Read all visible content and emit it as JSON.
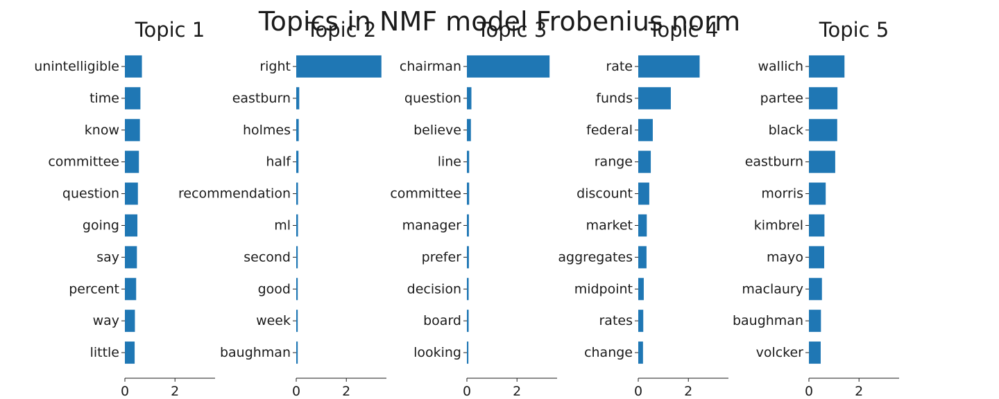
{
  "suptitle": "Topics in NMF model Frobenius norm",
  "chart_data": [
    {
      "type": "bar",
      "orientation": "horizontal",
      "title": "Topic 1",
      "categories": [
        "unintelligible",
        "time",
        "know",
        "committee",
        "question",
        "going",
        "say",
        "percent",
        "way",
        "little"
      ],
      "values": [
        0.68,
        0.62,
        0.6,
        0.56,
        0.52,
        0.5,
        0.48,
        0.45,
        0.4,
        0.39
      ],
      "xlim": [
        0,
        3.6
      ],
      "xticks": [
        "0",
        "2"
      ],
      "color": "#1f77b4"
    },
    {
      "type": "bar",
      "orientation": "horizontal",
      "title": "Topic 2",
      "categories": [
        "right",
        "eastburn",
        "holmes",
        "half",
        "recommendation",
        "ml",
        "second",
        "good",
        "week",
        "baughman"
      ],
      "values": [
        3.4,
        0.12,
        0.1,
        0.09,
        0.07,
        0.07,
        0.06,
        0.06,
        0.06,
        0.06
      ],
      "xlim": [
        0,
        3.6
      ],
      "xticks": [
        "0",
        "2"
      ],
      "color": "#1f77b4"
    },
    {
      "type": "bar",
      "orientation": "horizontal",
      "title": "Topic 3",
      "categories": [
        "chairman",
        "question",
        "believe",
        "line",
        "committee",
        "manager",
        "prefer",
        "decision",
        "board",
        "looking"
      ],
      "values": [
        3.3,
        0.18,
        0.16,
        0.09,
        0.09,
        0.08,
        0.08,
        0.07,
        0.07,
        0.06
      ],
      "xlim": [
        0,
        3.6
      ],
      "xticks": [
        "0",
        "2"
      ],
      "color": "#1f77b4"
    },
    {
      "type": "bar",
      "orientation": "horizontal",
      "title": "Topic 4",
      "categories": [
        "rate",
        "funds",
        "federal",
        "range",
        "discount",
        "market",
        "aggregates",
        "midpoint",
        "rates",
        "change"
      ],
      "values": [
        2.45,
        1.3,
        0.58,
        0.5,
        0.44,
        0.34,
        0.33,
        0.22,
        0.2,
        0.19
      ],
      "xlim": [
        0,
        3.6
      ],
      "xticks": [
        "0",
        "2"
      ],
      "color": "#1f77b4"
    },
    {
      "type": "bar",
      "orientation": "horizontal",
      "title": "Topic 5",
      "categories": [
        "wallich",
        "partee",
        "black",
        "eastburn",
        "morris",
        "kimbrel",
        "mayo",
        "maclaury",
        "baughman",
        "volcker"
      ],
      "values": [
        1.42,
        1.14,
        1.13,
        1.05,
        0.67,
        0.62,
        0.61,
        0.52,
        0.48,
        0.47
      ],
      "xlim": [
        0,
        3.6
      ],
      "xticks": [
        "0",
        "2"
      ],
      "color": "#1f77b4"
    }
  ]
}
